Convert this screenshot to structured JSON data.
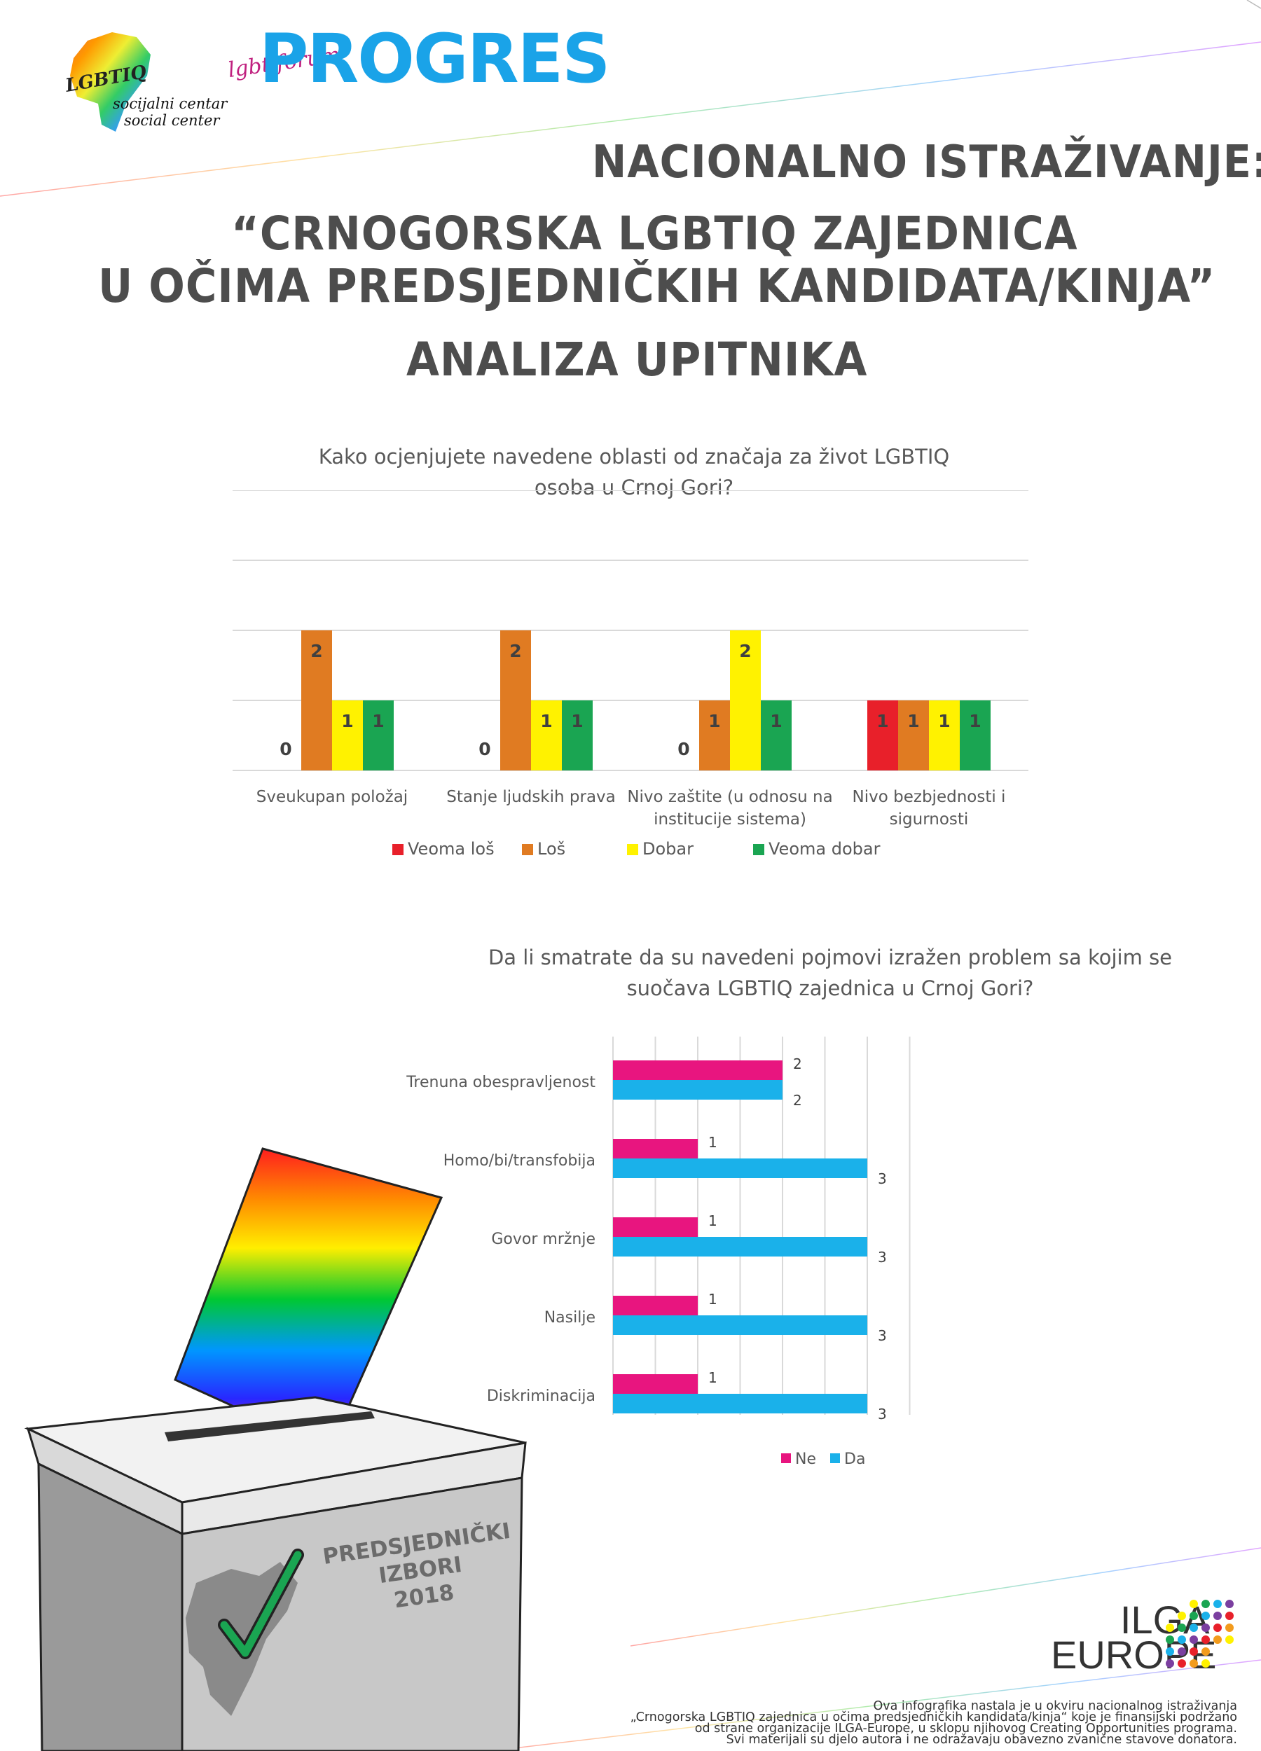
{
  "logos": {
    "lgbtiq_center": {
      "badge": "LGBTIQ",
      "line1": "socijalni centar",
      "line2": "social center"
    },
    "progres": {
      "name": "PROGRES",
      "prefix": "lgbt forum"
    },
    "ilga": {
      "line1": "ILGA",
      "line2": "EUROPE"
    }
  },
  "header": {
    "line1": "NACIONALNO ISTRAŽIVANJE:",
    "line2": "“CRNOGORSKA LGBTIQ ZAJEDNICA",
    "line3": "U OČIMA PREDSJEDNIČKIH KANDIDATA/KINJA”",
    "line4": "ANALIZA UPITNIKA"
  },
  "ballot_box": {
    "line1": "PREDSJEDNIČKI",
    "line2": "IZBORI",
    "line3": "2018"
  },
  "footer": {
    "line1": "Ova infografika nastala je u okviru nacionalnog istraživanja",
    "line2": "„Crnogorska LGBTIQ zajednica u očima predsjedničkih kandidata/kinja“  koje je finansijski podržano",
    "line3": "od strane organizacije ILGA-Europe, u sklopu njihovog Creating Opportunities programa.",
    "line4": "Svi materijali su djelo autora i ne odražavaju obavezno zvanične stavove donatora."
  },
  "colors": {
    "veoma_los": "#e8202a",
    "los": "#e07b22",
    "dobar": "#fff200",
    "veoma_dobar": "#1aa552",
    "ne": "#e8157f",
    "da": "#1ab1ea"
  },
  "chart_data": [
    {
      "type": "bar",
      "title_line1": "Kako ocjenjujete navedene oblasti od značaja za život  LGBTIQ",
      "title_line2": "osoba u Crnoj Gori?",
      "categories": [
        [
          "Sveukupan položaj"
        ],
        [
          "Stanje ljudskih prava"
        ],
        [
          "Nivo zaštite (u odnosu na",
          "institucije sistema)"
        ],
        [
          "Nivo bezbjednosti i",
          "sigurnosti"
        ]
      ],
      "series": [
        {
          "name": "Veoma loš",
          "values": [
            0,
            0,
            0,
            1
          ]
        },
        {
          "name": "Loš",
          "values": [
            2,
            2,
            1,
            1
          ]
        },
        {
          "name": "Dobar",
          "values": [
            1,
            1,
            2,
            1
          ]
        },
        {
          "name": "Veoma dobar",
          "values": [
            1,
            1,
            1,
            1
          ]
        }
      ],
      "ylim": [
        0,
        4
      ],
      "grid": true,
      "legend": "bottom"
    },
    {
      "type": "bar",
      "orientation": "horizontal",
      "title_line1": "Da li smatrate da su navedeni pojmovi izražen problem sa kojim se",
      "title_line2": "suočava LGBTIQ zajednica u Crnoj Gori?",
      "categories": [
        "Trenuna obespravljenost",
        "Homo/bi/transfobija",
        "Govor mržnje",
        "Nasilje",
        "Diskriminacija"
      ],
      "series": [
        {
          "name": "Ne",
          "values": [
            2,
            1,
            1,
            1,
            1
          ]
        },
        {
          "name": "Da",
          "values": [
            2,
            3,
            3,
            3,
            3
          ]
        }
      ],
      "xlim": [
        0,
        3.5
      ],
      "grid": true,
      "legend": "bottom"
    }
  ]
}
